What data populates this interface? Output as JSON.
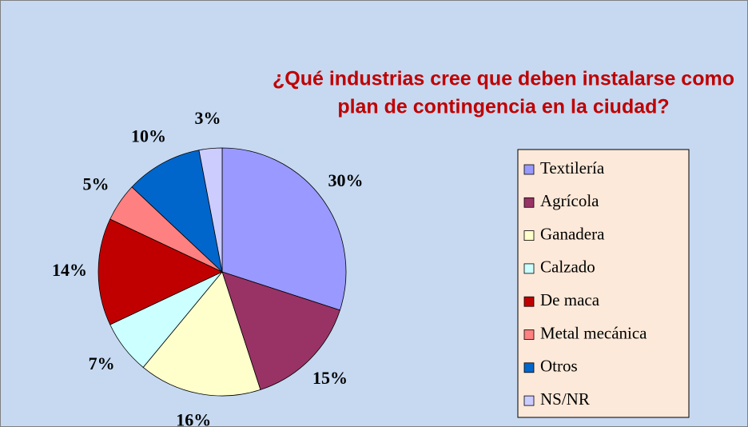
{
  "chart_data": {
    "type": "pie",
    "title": [
      "¿Qué industrias cree que deben instalarse como",
      "plan de  contingencia en la ciudad?"
    ],
    "categories": [
      "Textilería",
      "Agrícola",
      "Ganadera",
      "Calzado",
      "De maca",
      "Metal mecánica",
      "Otros",
      "NS/NR"
    ],
    "values": [
      30,
      15,
      16,
      7,
      14,
      5,
      10,
      3
    ],
    "value_labels": [
      "30%",
      "15%",
      "16%",
      "7%",
      "14%",
      "5%",
      "10%",
      "3%"
    ],
    "colors": [
      "#9999ff",
      "#993366",
      "#ffffcc",
      "#ccffff",
      "#c00000",
      "#ff8080",
      "#0066cc",
      "#ccccff"
    ],
    "legend": "right"
  }
}
